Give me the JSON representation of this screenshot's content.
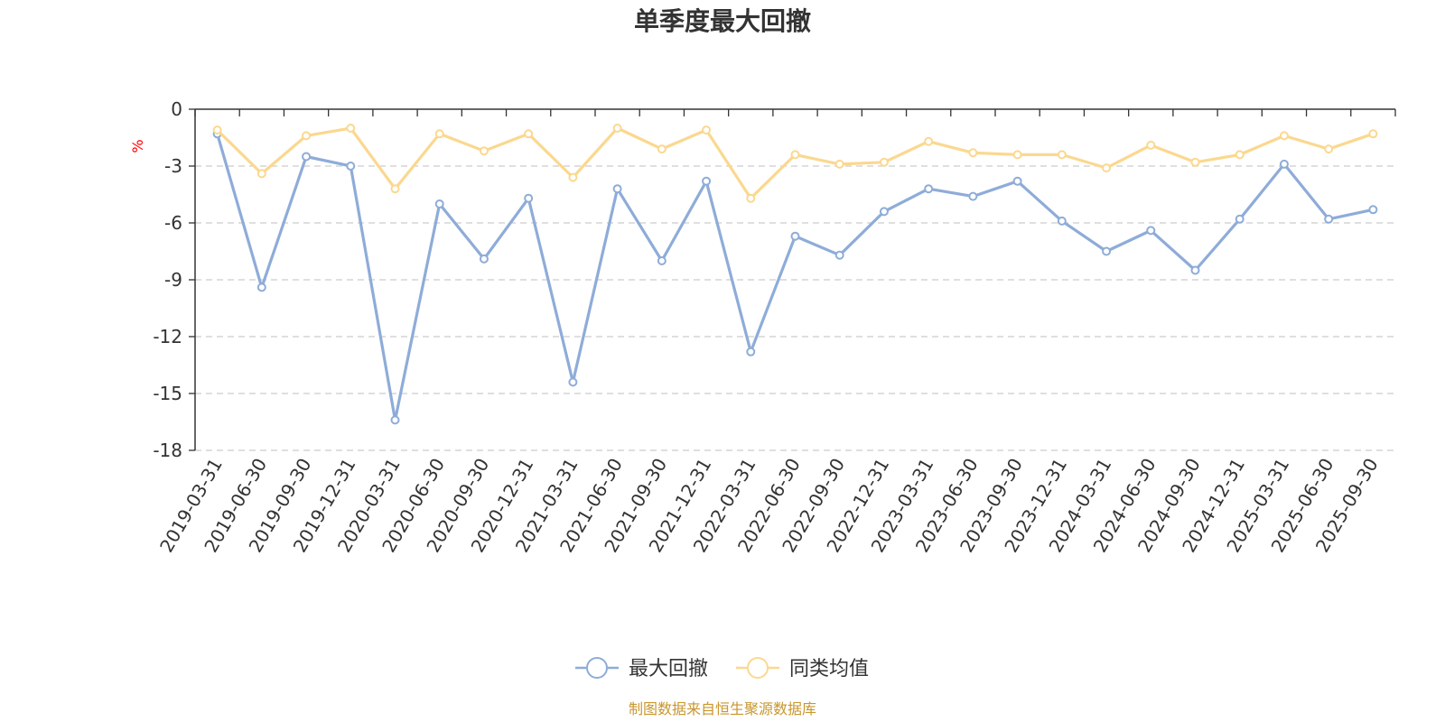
{
  "chart_data": {
    "type": "line",
    "title": "单季度最大回撤",
    "ylabel": "%",
    "ylim": [
      -18,
      0
    ],
    "yticks": [
      0,
      -3,
      -6,
      -9,
      -12,
      -15,
      -18
    ],
    "grid": true,
    "legend_position": "bottom",
    "categories": [
      "2019-03-31",
      "2019-06-30",
      "2019-09-30",
      "2019-12-31",
      "2020-03-31",
      "2020-06-30",
      "2020-09-30",
      "2020-12-31",
      "2021-03-31",
      "2021-06-30",
      "2021-09-30",
      "2021-12-31",
      "2022-03-31",
      "2022-06-30",
      "2022-09-30",
      "2022-12-31",
      "2023-03-31",
      "2023-06-30",
      "2023-09-30",
      "2023-12-31",
      "2024-03-31",
      "2024-06-30",
      "2024-09-30",
      "2024-12-31",
      "2025-03-31",
      "2025-06-30",
      "2025-09-30"
    ],
    "series": [
      {
        "name": "最大回撤",
        "color": "#8eacd8",
        "values": [
          -1.3,
          -9.4,
          -2.5,
          -3.0,
          -16.4,
          -5.0,
          -7.9,
          -4.7,
          -14.4,
          -4.2,
          -8.0,
          -3.8,
          -12.8,
          -6.7,
          -7.7,
          -5.4,
          -4.2,
          -4.6,
          -3.8,
          -5.9,
          -7.5,
          -6.4,
          -8.5,
          -5.8,
          -2.9,
          -5.8,
          -5.3
        ]
      },
      {
        "name": "同类均值",
        "color": "#fbd88f",
        "values": [
          -1.1,
          -3.4,
          -1.4,
          -1.0,
          -4.2,
          -1.3,
          -2.2,
          -1.3,
          -3.6,
          -1.0,
          -2.1,
          -1.1,
          -4.7,
          -2.4,
          -2.9,
          -2.8,
          -1.7,
          -2.3,
          -2.4,
          -2.4,
          -3.1,
          -1.9,
          -2.8,
          -2.4,
          -1.4,
          -2.1,
          -1.3
        ]
      }
    ]
  },
  "footer": {
    "source": "制图数据来自恒生聚源数据库"
  }
}
